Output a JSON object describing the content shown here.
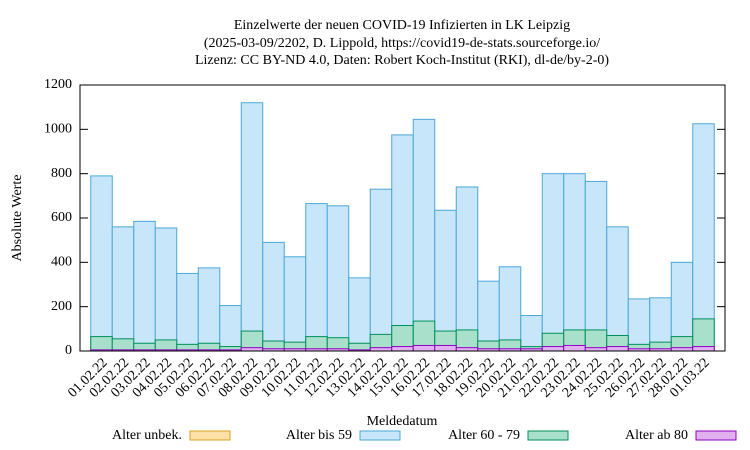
{
  "chart_data": {
    "type": "bar",
    "title": "Einzelwerte der neuen COVID-19 Infizierten in LK Leipzig",
    "subtitle": [
      "(2025-03-09/2202, D. Lippold, https://covid19-de-stats.sourceforge.io/",
      "Lizenz: CC BY-ND 4.0, Daten: Robert Koch-Institut (RKI), dl-de/by-2-0)"
    ],
    "x_label": "Meldedatum",
    "y_label": "Absolute Werte",
    "categories": [
      "01.02.22",
      "02.02.22",
      "03.02.22",
      "04.02.22",
      "05.02.22",
      "06.02.22",
      "07.02.22",
      "08.02.22",
      "09.02.22",
      "10.02.22",
      "11.02.22",
      "12.02.22",
      "13.02.22",
      "14.02.22",
      "15.02.22",
      "16.02.22",
      "17.02.22",
      "18.02.22",
      "19.02.22",
      "20.02.22",
      "21.02.22",
      "22.02.22",
      "23.02.22",
      "24.02.22",
      "25.02.22",
      "26.02.22",
      "27.02.22",
      "28.02.22",
      "01.03.22"
    ],
    "series": [
      {
        "name": "Alter unbek.",
        "color": "#fce0a8",
        "stroke": "#e0a020",
        "values": [
          0,
          0,
          0,
          0,
          0,
          0,
          0,
          0,
          0,
          0,
          0,
          0,
          0,
          0,
          0,
          0,
          0,
          0,
          0,
          0,
          0,
          0,
          0,
          0,
          0,
          0,
          0,
          0,
          0
        ]
      },
      {
        "name": "Alter bis 59",
        "color": "#c8e6fa",
        "stroke": "#4aa8d8",
        "values": [
          790,
          560,
          585,
          555,
          350,
          375,
          205,
          1120,
          490,
          425,
          665,
          655,
          330,
          730,
          975,
          1045,
          635,
          740,
          315,
          380,
          160,
          800,
          800,
          765,
          560,
          235,
          240,
          400,
          1025
        ]
      },
      {
        "name": "Alter 60 - 79",
        "color": "#a8e0cc",
        "stroke": "#00905a",
        "values": [
          65,
          55,
          35,
          50,
          30,
          35,
          20,
          90,
          45,
          40,
          65,
          60,
          35,
          75,
          115,
          135,
          90,
          95,
          45,
          50,
          20,
          80,
          95,
          95,
          70,
          30,
          40,
          65,
          145
        ]
      },
      {
        "name": "Alter ab 80",
        "color": "#e0b0f0",
        "stroke": "#9000c0",
        "values": [
          5,
          5,
          5,
          5,
          5,
          5,
          5,
          15,
          10,
          10,
          10,
          10,
          5,
          15,
          20,
          25,
          25,
          15,
          10,
          10,
          10,
          20,
          25,
          15,
          20,
          10,
          10,
          15,
          20
        ]
      }
    ],
    "ylim": [
      0,
      1200
    ],
    "yticks": [
      0,
      200,
      400,
      600,
      800,
      1000,
      1200
    ],
    "grid": false,
    "legend": "bottom"
  }
}
